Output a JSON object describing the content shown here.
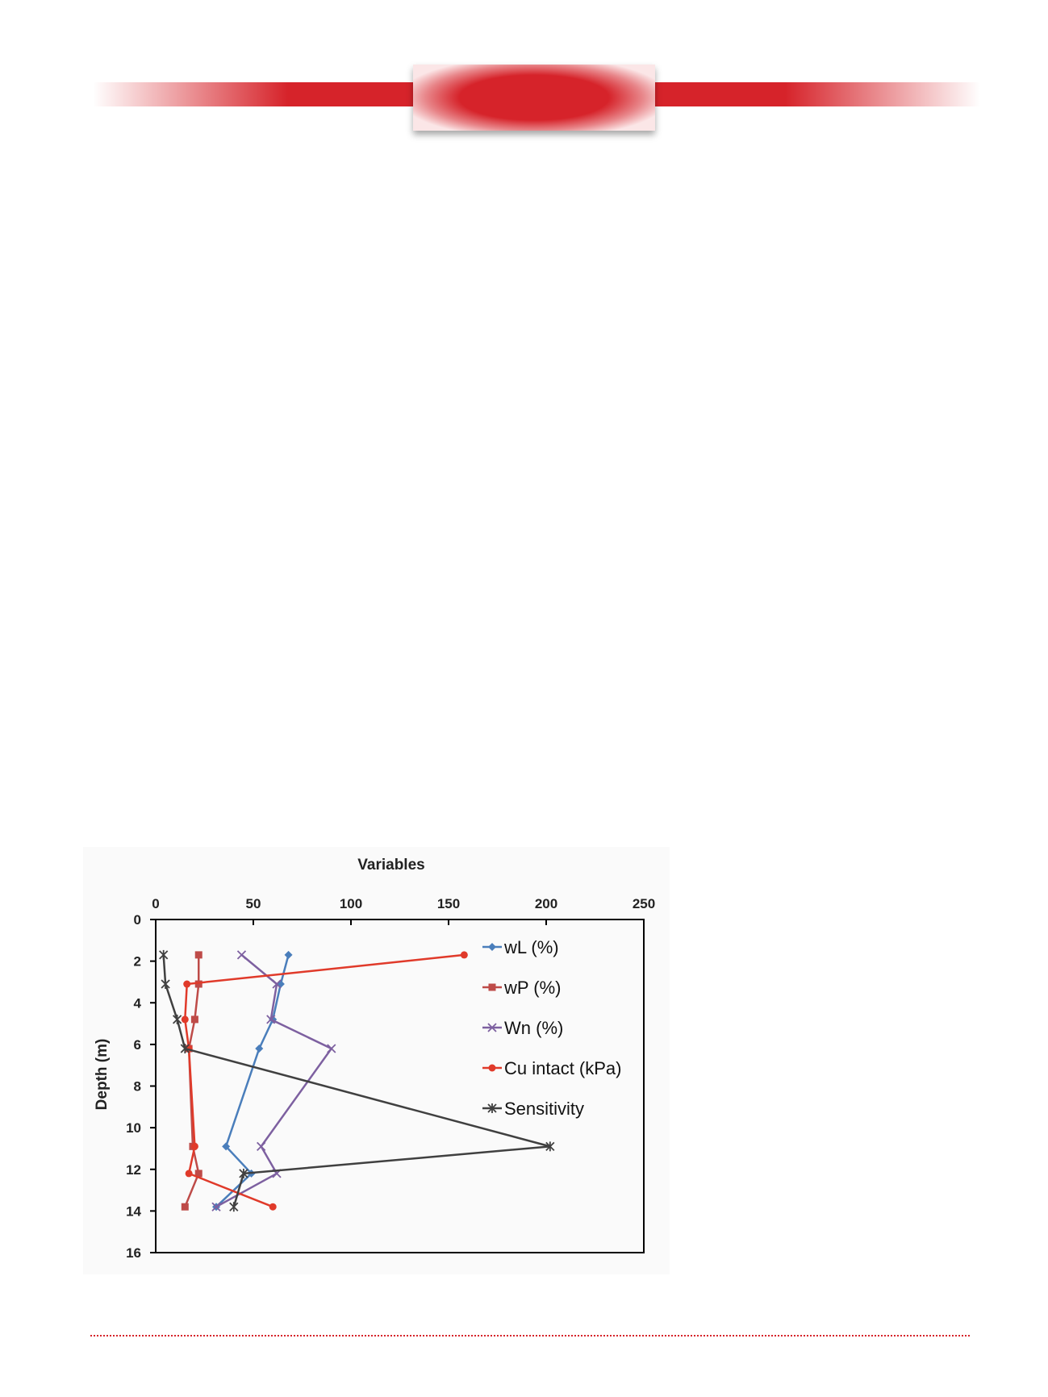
{
  "colors": {
    "accent": "#d6232a"
  },
  "chart_data": {
    "type": "line",
    "title": "",
    "xlabel": "Variables",
    "ylabel": "Depth (m)",
    "xlim": [
      0,
      250
    ],
    "ylim": [
      16,
      0
    ],
    "x_axis_position": "top",
    "x_ticks": [
      0,
      50,
      100,
      150,
      200,
      250
    ],
    "y_ticks": [
      0,
      2,
      4,
      6,
      8,
      10,
      12,
      14,
      16
    ],
    "grid": false,
    "legend_position": "right",
    "series": [
      {
        "name": "wL (%)",
        "color": "#4a7ebb",
        "marker": "diamond",
        "points": [
          [
            68,
            1.7
          ],
          [
            64,
            3.1
          ],
          [
            60,
            4.8
          ],
          [
            53,
            6.2
          ],
          [
            36,
            10.9
          ],
          [
            49,
            12.2
          ],
          [
            31,
            13.8
          ]
        ]
      },
      {
        "name": "wP (%)",
        "color": "#be4b48",
        "marker": "square",
        "points": [
          [
            22,
            1.7
          ],
          [
            22,
            3.1
          ],
          [
            20,
            4.8
          ],
          [
            17,
            6.2
          ],
          [
            19,
            10.9
          ],
          [
            22,
            12.2
          ],
          [
            15,
            13.8
          ]
        ]
      },
      {
        "name": "Wn (%)",
        "color": "#7d60a0",
        "marker": "x",
        "points": [
          [
            44,
            1.7
          ],
          [
            62,
            3.1
          ],
          [
            59,
            4.8
          ],
          [
            90,
            6.2
          ],
          [
            54,
            10.9
          ],
          [
            62,
            12.2
          ],
          [
            31,
            13.8
          ]
        ]
      },
      {
        "name": "Cu intact (kPa)",
        "color": "#e03a2a",
        "marker": "circle",
        "points": [
          [
            158,
            1.7
          ],
          [
            16,
            3.1
          ],
          [
            15,
            4.8
          ],
          [
            17,
            6.2
          ],
          [
            20,
            10.9
          ],
          [
            17,
            12.2
          ],
          [
            60,
            13.8
          ]
        ]
      },
      {
        "name": "Sensitivity",
        "color": "#404040",
        "marker": "star",
        "points": [
          [
            4,
            1.7
          ],
          [
            5,
            3.1
          ],
          [
            11,
            4.8
          ],
          [
            15,
            6.2
          ],
          [
            202,
            10.9
          ],
          [
            45,
            12.2
          ],
          [
            40,
            13.8
          ]
        ]
      }
    ]
  }
}
